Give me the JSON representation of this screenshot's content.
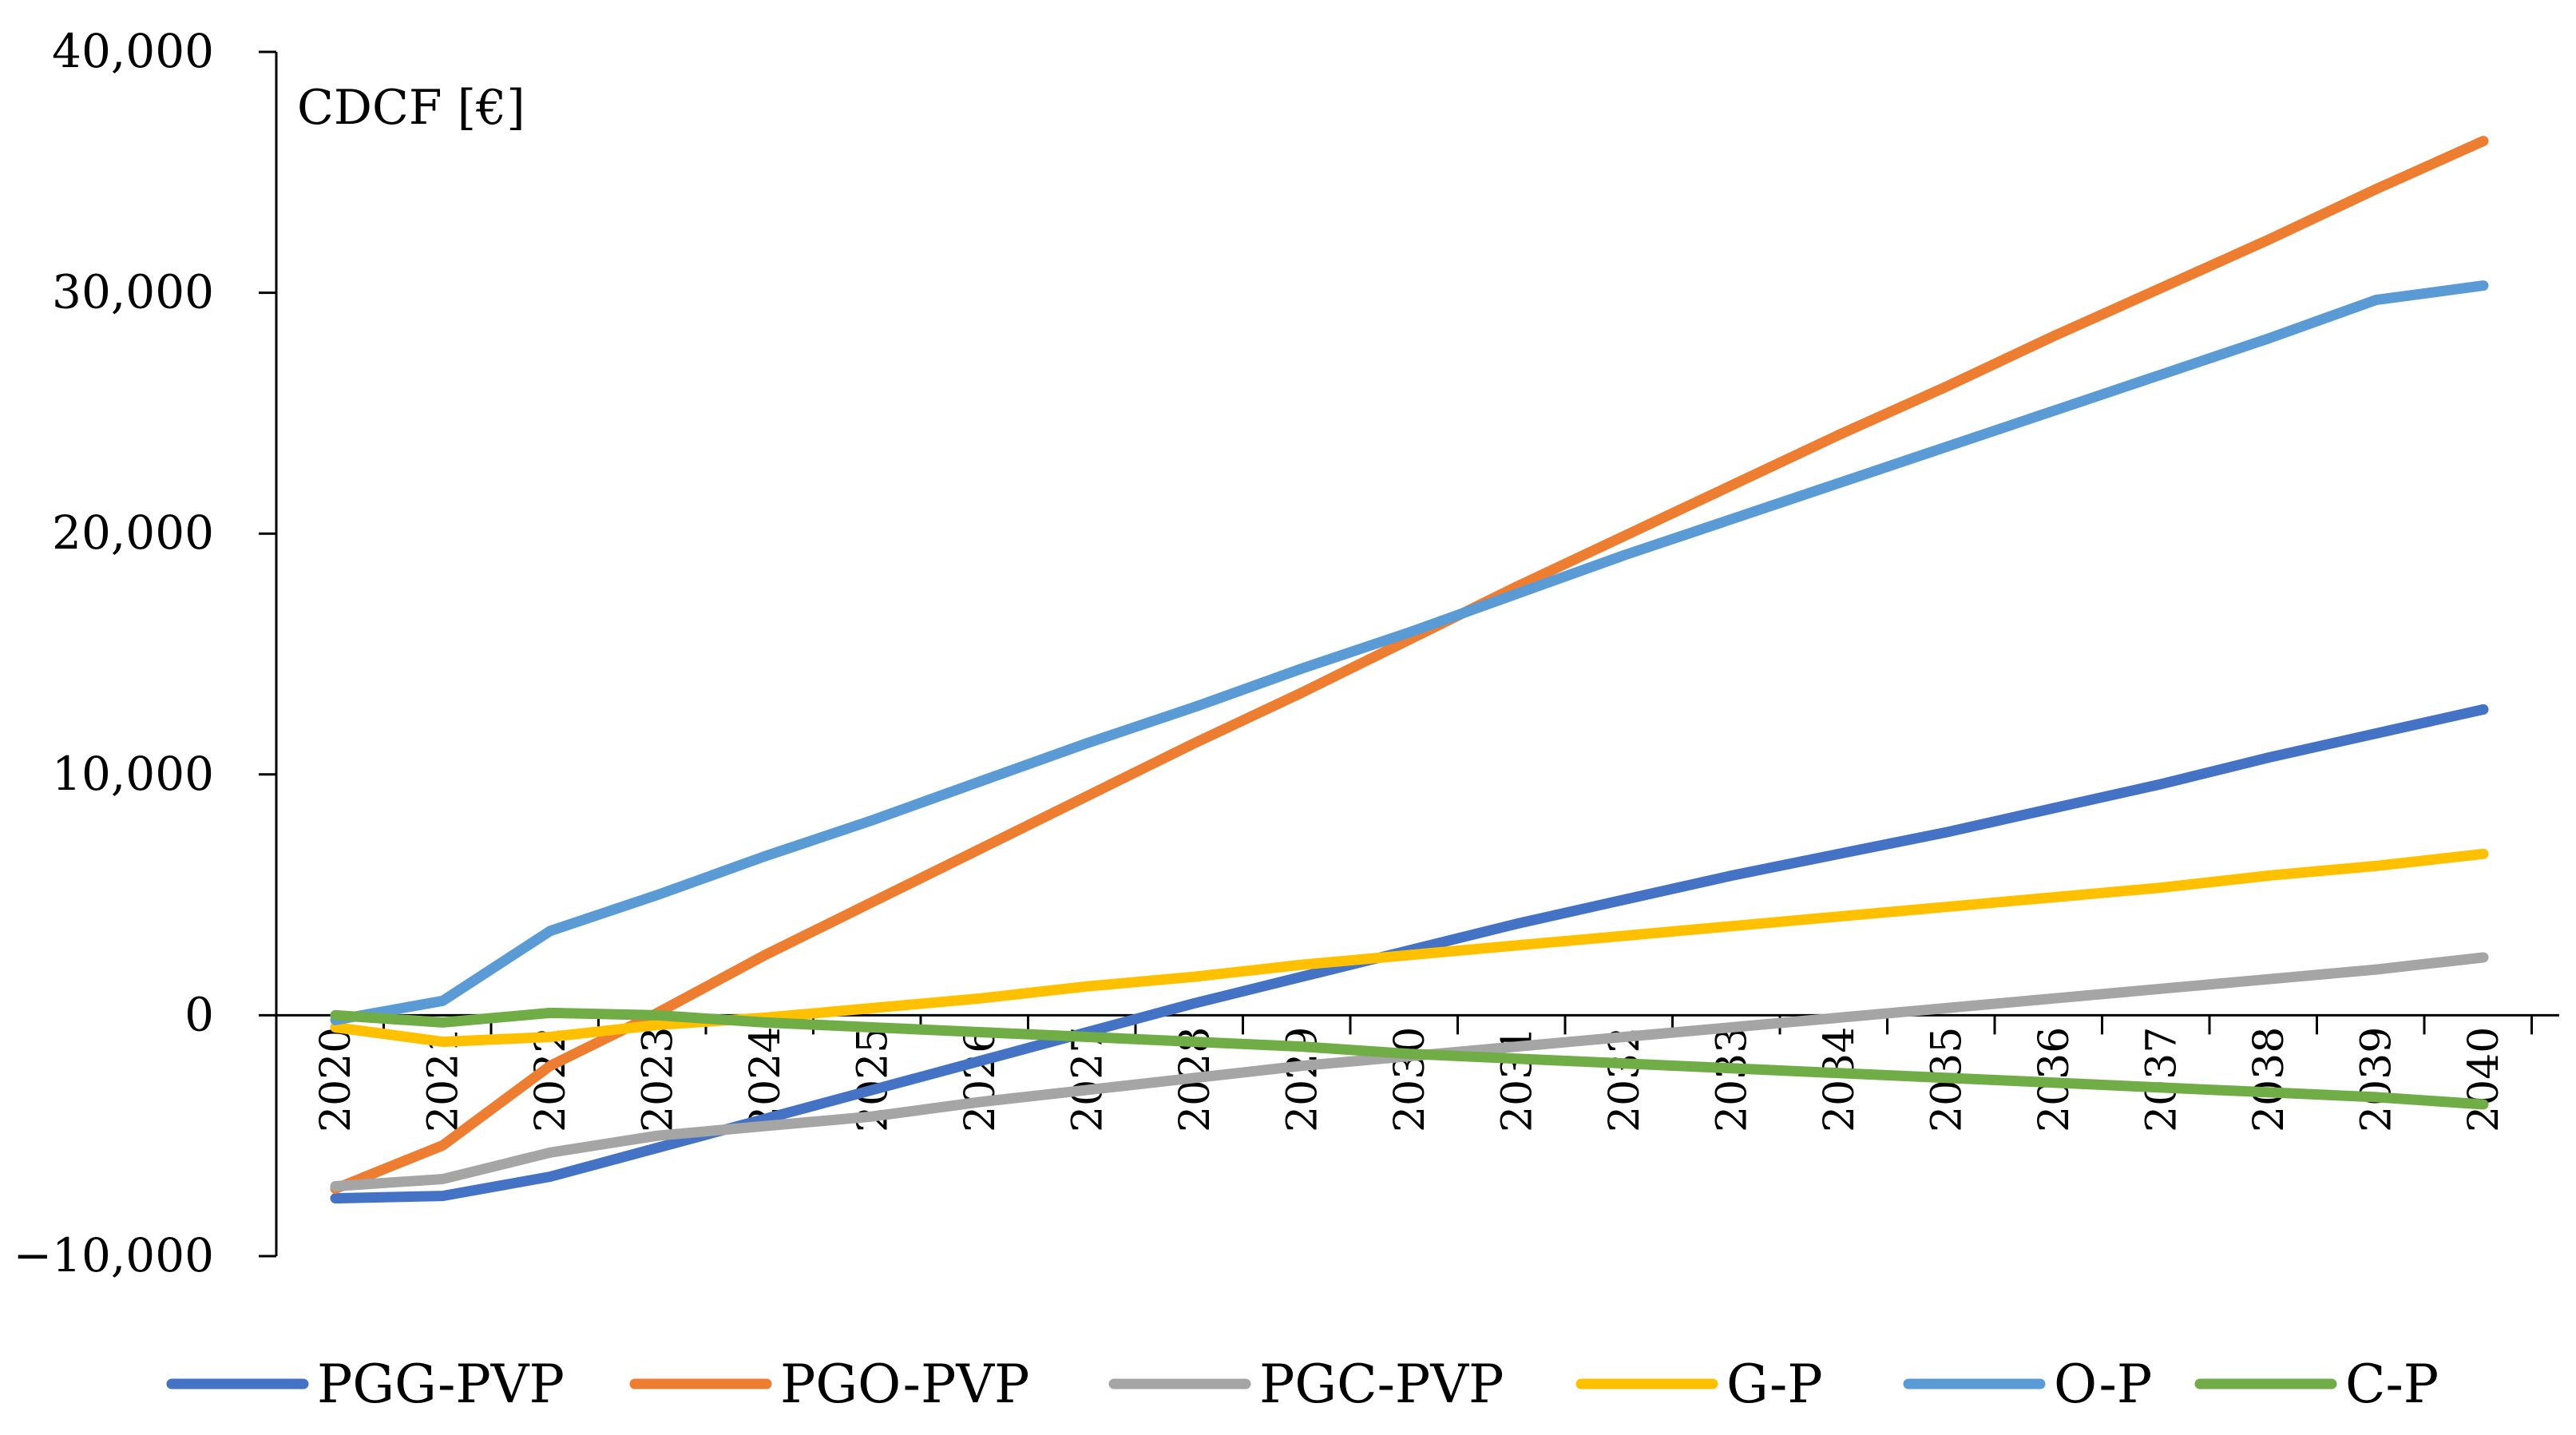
{
  "chart_data": {
    "type": "line",
    "title": "",
    "xlabel": "",
    "ylabel": "CDCF [€]",
    "ylim": [
      -10000,
      40000
    ],
    "yticks": [
      -10000,
      0,
      10000,
      20000,
      30000,
      40000
    ],
    "ytick_labels": [
      "−10,000",
      "0",
      "10,000",
      "20,000",
      "30,000",
      "40,000"
    ],
    "categories": [
      "2020",
      "2021",
      "2022",
      "2023",
      "2024",
      "2025",
      "2026",
      "2027",
      "2028",
      "2029",
      "2030",
      "2031",
      "2032",
      "2033",
      "2034",
      "2035",
      "2036",
      "2037",
      "2038",
      "2039",
      "2040"
    ],
    "legend_position": "bottom",
    "series": [
      {
        "name": "PGG-PVP",
        "color": "#4472C4",
        "values": [
          -7600,
          -7500,
          -6700,
          -5500,
          -4300,
          -3100,
          -1900,
          -700,
          500,
          1600,
          2700,
          3800,
          4800,
          5800,
          6700,
          7600,
          8600,
          9600,
          10700,
          11700,
          12700
        ]
      },
      {
        "name": "PGO-PVP",
        "color": "#ED7D31",
        "values": [
          -7200,
          -5400,
          -2100,
          100,
          2500,
          4700,
          6900,
          9100,
          11300,
          13400,
          15600,
          17800,
          19900,
          22000,
          24100,
          26100,
          28200,
          30200,
          32200,
          34300,
          36300
        ]
      },
      {
        "name": "PGC-PVP",
        "color": "#A5A5A5",
        "values": [
          -7100,
          -6800,
          -5700,
          -5000,
          -4600,
          -4200,
          -3600,
          -3100,
          -2600,
          -2100,
          -1700,
          -1300,
          -900,
          -500,
          -100,
          300,
          700,
          1100,
          1500,
          1900,
          2400
        ]
      },
      {
        "name": "G-P",
        "color": "#FFC000",
        "values": [
          -500,
          -1100,
          -900,
          -400,
          -100,
          300,
          700,
          1200,
          1600,
          2100,
          2500,
          2900,
          3300,
          3700,
          4100,
          4500,
          4900,
          5300,
          5800,
          6200,
          6700
        ]
      },
      {
        "name": "O-P",
        "color": "#5B9BD5",
        "values": [
          -200,
          600,
          3500,
          5000,
          6600,
          8100,
          9700,
          11300,
          12800,
          14400,
          15900,
          17500,
          19100,
          20600,
          22100,
          23600,
          25100,
          26600,
          28100,
          29700,
          30300
        ]
      },
      {
        "name": "C-P",
        "color": "#70AD47",
        "values": [
          0,
          -300,
          100,
          0,
          -300,
          -500,
          -700,
          -900,
          -1100,
          -1300,
          -1600,
          -1800,
          -2000,
          -2200,
          -2400,
          -2600,
          -2800,
          -3000,
          -3200,
          -3400,
          -3700
        ]
      }
    ]
  }
}
